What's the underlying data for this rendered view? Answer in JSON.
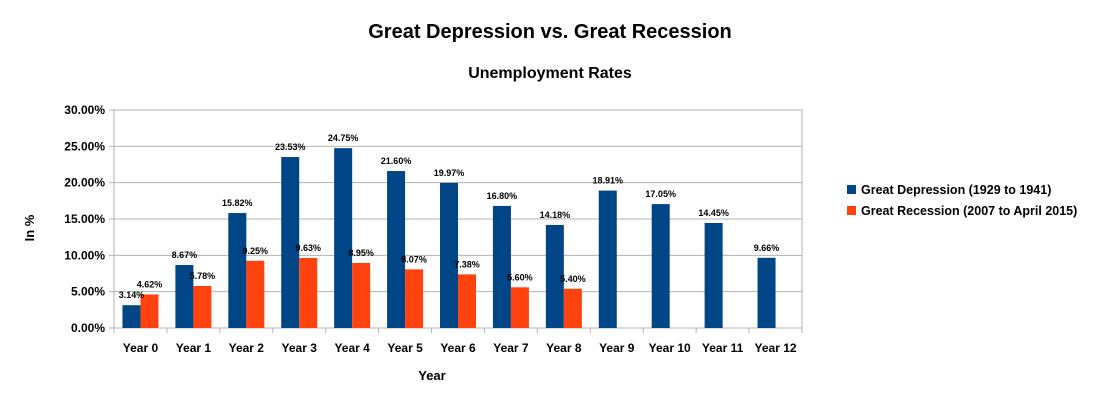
{
  "chart_data": {
    "type": "bar",
    "title": "Great Depression vs. Great Recession",
    "subtitle": "Unemployment Rates",
    "xlabel": "Year",
    "ylabel": "In %",
    "categories": [
      "Year 0",
      "Year 1",
      "Year 2",
      "Year 3",
      "Year 4",
      "Year 5",
      "Year 6",
      "Year 7",
      "Year 8",
      "Year 9",
      "Year 10",
      "Year 11",
      "Year 12"
    ],
    "ylim": [
      0,
      30
    ],
    "yticks": [
      0,
      5,
      10,
      15,
      20,
      25,
      30
    ],
    "ytick_labels": [
      "0.00%",
      "5.00%",
      "10.00%",
      "15.00%",
      "20.00%",
      "25.00%",
      "30.00%"
    ],
    "grid": true,
    "legend_position": "right",
    "series": [
      {
        "name": "Great Depression (1929 to 1941)",
        "color": "#004586",
        "values": [
          3.14,
          8.67,
          15.82,
          23.53,
          24.75,
          21.6,
          19.97,
          16.8,
          14.18,
          18.91,
          17.05,
          14.45,
          9.66
        ],
        "labels": [
          "3.14%",
          "8.67%",
          "15.82%",
          "23.53%",
          "24.75%",
          "21.60%",
          "19.97%",
          "16.80%",
          "14.18%",
          "18.91%",
          "17.05%",
          "14.45%",
          "9.66%"
        ]
      },
      {
        "name": "Great Recession (2007 to April 2015)",
        "color": "#ff420e",
        "values": [
          4.62,
          5.78,
          9.25,
          9.63,
          8.95,
          8.07,
          7.38,
          5.6,
          5.4,
          null,
          null,
          null,
          null
        ],
        "labels": [
          "4.62%",
          "5.78%",
          "9.25%",
          "9.63%",
          "8.95%",
          "8.07%",
          "7.38%",
          "5.60%",
          "5.40%",
          null,
          null,
          null,
          null
        ]
      }
    ]
  }
}
